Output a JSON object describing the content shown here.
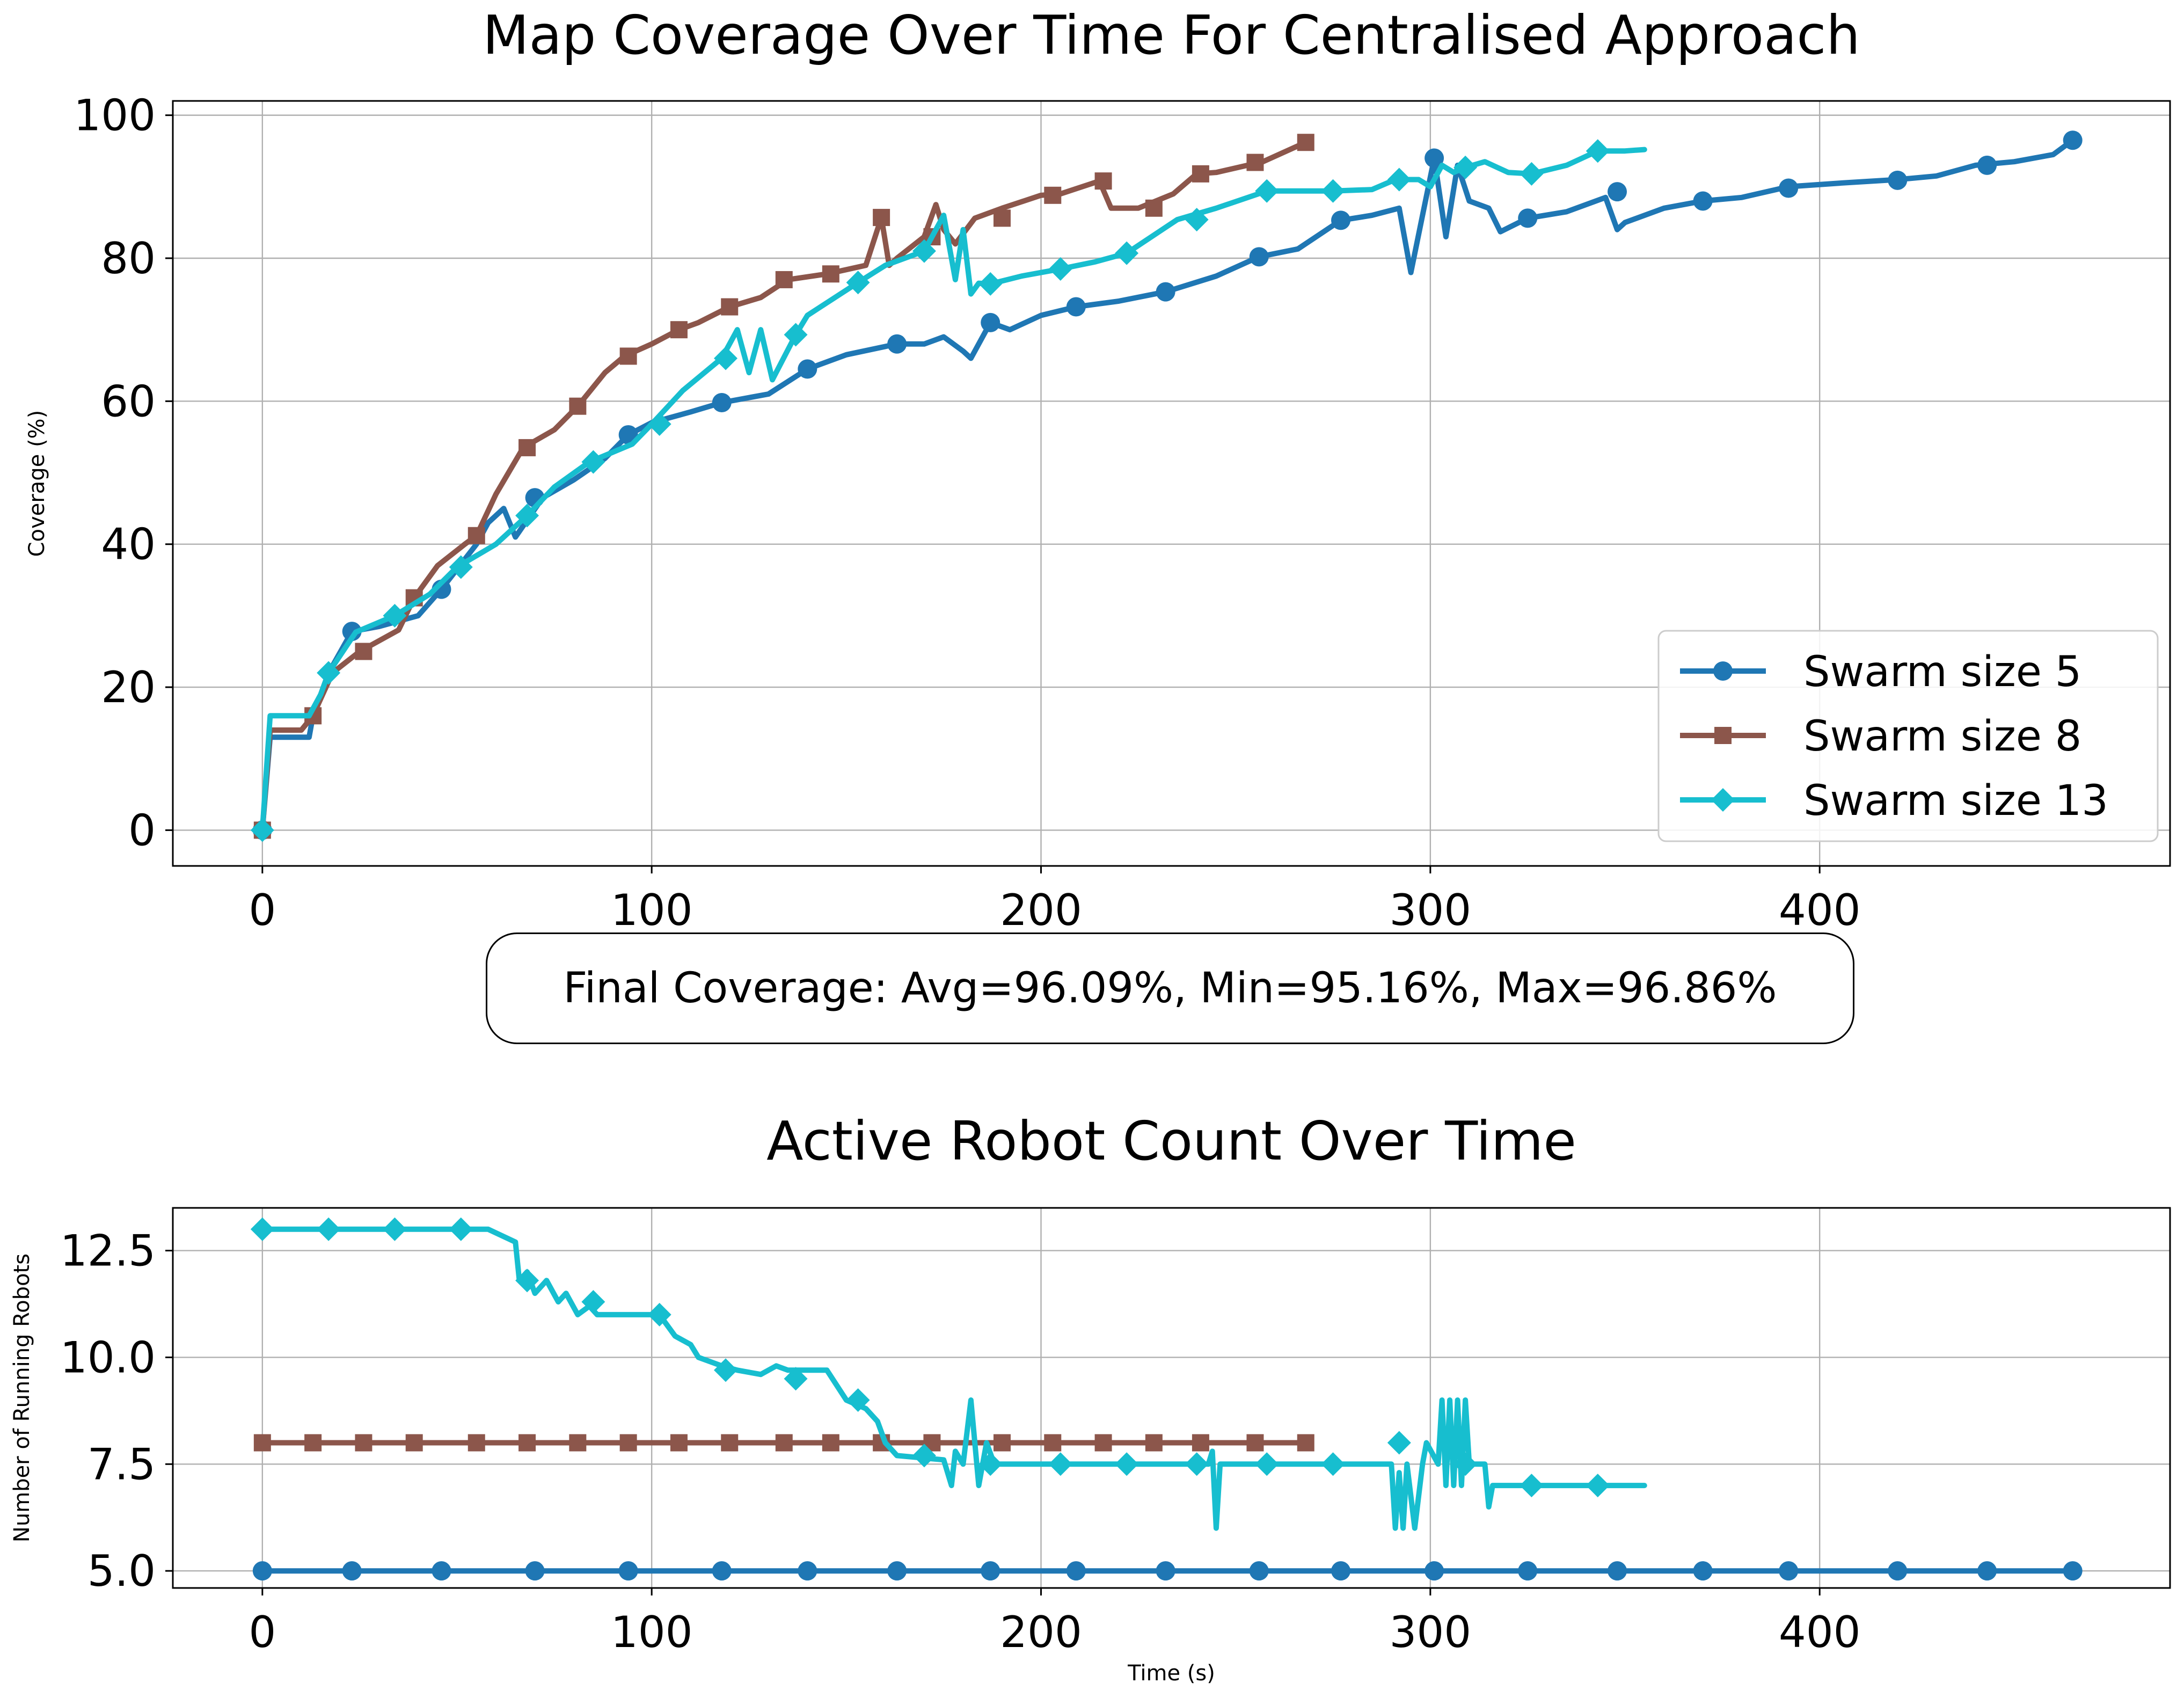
{
  "colors": {
    "s5": "#1f77b4",
    "s8": "#8c564b",
    "s13": "#17becf"
  },
  "legend_placement": "lower-right",
  "grid": true,
  "chart_data": [
    {
      "type": "line",
      "title": "Map Coverage Over Time For Centralised Approach",
      "xlabel": "Time (s)",
      "ylabel": "Coverage (%)",
      "xlim": [
        -23,
        490
      ],
      "ylim": [
        -5,
        102
      ],
      "xticks": [
        "0",
        "100",
        "200",
        "300",
        "400"
      ],
      "yticks": [
        "0",
        "20",
        "40",
        "60",
        "80",
        "100"
      ],
      "series": [
        {
          "name": "Swarm size 5",
          "marker": "circle",
          "color": "#1f77b4",
          "x": [
            0,
            2,
            3,
            12,
            13,
            17,
            23,
            30,
            40,
            46,
            55,
            58,
            62,
            65,
            72,
            80,
            88,
            94,
            100,
            110,
            118,
            130,
            140,
            150,
            163,
            170,
            175,
            180,
            182,
            187,
            192,
            200,
            209,
            220,
            232,
            245,
            256,
            266,
            277,
            285,
            292,
            295,
            298,
            301,
            304,
            307,
            310,
            315,
            318,
            325,
            335,
            345,
            348,
            350,
            360,
            370,
            380,
            392,
            405,
            420,
            430,
            440,
            450,
            460,
            465
          ],
          "y": [
            0,
            13,
            13,
            13,
            16,
            22,
            27.8,
            28.5,
            30,
            33.7,
            40,
            43,
            45,
            41,
            46.5,
            49,
            52,
            55.3,
            57,
            58.5,
            59.8,
            61,
            64.5,
            66.5,
            68,
            68,
            69,
            67,
            66,
            71,
            70,
            72,
            73.2,
            74,
            75.3,
            77.5,
            80.2,
            81.3,
            85.3,
            86,
            87,
            78,
            86,
            94,
            83,
            93,
            88,
            87,
            83.7,
            85.6,
            86.5,
            88.5,
            84,
            85,
            87,
            88,
            88.5,
            90,
            90.5,
            91,
            91.5,
            93,
            93.5,
            94.5,
            96.5
          ],
          "markers_x": [
            0,
            23,
            46,
            70,
            94,
            118,
            140,
            163,
            187,
            209,
            232,
            256,
            277,
            301,
            325,
            348,
            370,
            392,
            420,
            443,
            465
          ],
          "markers_y": [
            0,
            27.8,
            33.7,
            46.5,
            55.3,
            59.8,
            64.5,
            68,
            71,
            73.2,
            75.3,
            80.2,
            85.3,
            94,
            85.6,
            89.3,
            88,
            89.8,
            90.9,
            93,
            96.5
          ]
        },
        {
          "name": "Swarm size 8",
          "marker": "square",
          "color": "#8c564b",
          "x": [
            0,
            2,
            3,
            10,
            13,
            18,
            25,
            35,
            39,
            45,
            52,
            55,
            60,
            67,
            75,
            81,
            88,
            93,
            100,
            107,
            112,
            120,
            128,
            135,
            145,
            155,
            159,
            161,
            163,
            170,
            173,
            175,
            178,
            183,
            190,
            200,
            205,
            215,
            218,
            225,
            234,
            240,
            245,
            257,
            268
          ],
          "y": [
            0,
            14,
            14,
            14,
            16,
            22,
            25,
            28,
            32.5,
            37,
            40,
            41.2,
            47,
            53.5,
            56,
            59.3,
            64,
            66.3,
            68,
            70,
            71,
            73.2,
            74.5,
            77,
            77.8,
            79,
            85.7,
            79,
            80,
            83,
            87.5,
            84,
            82,
            85.6,
            87,
            88.8,
            89,
            90.8,
            87,
            87,
            89,
            91.8,
            92,
            93.5,
            96.2
          ],
          "markers_x": [
            0,
            13,
            26,
            39,
            55,
            68,
            81,
            94,
            107,
            120,
            134,
            146,
            159,
            172,
            190,
            203,
            216,
            229,
            241,
            255,
            268
          ],
          "markers_y": [
            0,
            16,
            25,
            32.5,
            41.2,
            53.5,
            59.3,
            66.3,
            70,
            73.2,
            77,
            77.8,
            85.7,
            83,
            85.6,
            88.8,
            90.8,
            87,
            91.8,
            93.4,
            96.2
          ]
        },
        {
          "name": "Swarm size 13",
          "marker": "diamond",
          "color": "#17becf",
          "x": [
            0,
            2,
            3,
            12,
            15,
            17,
            24,
            34,
            43,
            50,
            60,
            68,
            75,
            84,
            95,
            100,
            108,
            118,
            122,
            125,
            128,
            131,
            137,
            140,
            153,
            160,
            170,
            175,
            178,
            180,
            182,
            184,
            187,
            195,
            205,
            214,
            222,
            235,
            245,
            258,
            265,
            275,
            285,
            291,
            297,
            300,
            303,
            306,
            309,
            314,
            320,
            326,
            335,
            343,
            350,
            355
          ],
          "y": [
            0,
            16,
            16,
            16,
            19,
            22,
            27.7,
            30,
            33,
            36.8,
            40,
            44,
            48,
            51.5,
            54,
            56.8,
            61.5,
            66,
            70,
            64,
            70,
            63,
            69.3,
            72,
            76.6,
            79,
            81,
            86,
            77,
            84,
            75,
            76.5,
            76.4,
            77.5,
            78.5,
            79.5,
            80.7,
            85.4,
            87,
            89.4,
            89.4,
            89.4,
            89.6,
            91,
            91,
            90,
            93,
            92,
            92.7,
            93.5,
            92,
            91.8,
            93,
            95,
            95,
            95.2
          ],
          "markers_x": [
            0,
            17,
            34,
            51,
            68,
            85,
            102,
            119,
            137,
            153,
            170,
            187,
            205,
            222,
            240,
            258,
            275,
            292,
            309,
            326,
            343
          ],
          "markers_y": [
            0,
            22,
            30,
            36.8,
            44,
            51.5,
            56.8,
            66,
            69.3,
            76.6,
            81,
            76.4,
            78.5,
            80.7,
            85.4,
            89.4,
            89.4,
            91,
            92.7,
            91.8,
            95
          ]
        }
      ]
    },
    {
      "type": "line",
      "title": "Active Robot Count Over Time",
      "xlabel": "Time (s)",
      "ylabel": "Number of Running Robots",
      "xlim": [
        -23,
        490
      ],
      "ylim": [
        4.6,
        13.5
      ],
      "xticks": [
        "0",
        "100",
        "200",
        "300",
        "400"
      ],
      "yticks": [
        "5.0",
        "7.5",
        "10.0",
        "12.5"
      ],
      "series": [
        {
          "name": "Swarm size 5",
          "marker": "circle",
          "color": "#1f77b4",
          "x": [
            0,
            465
          ],
          "y": [
            5,
            5
          ],
          "markers_x": [
            0,
            23,
            46,
            70,
            94,
            118,
            140,
            163,
            187,
            209,
            232,
            256,
            277,
            301,
            325,
            348,
            370,
            392,
            420,
            443,
            465
          ],
          "markers_y": [
            5,
            5,
            5,
            5,
            5,
            5,
            5,
            5,
            5,
            5,
            5,
            5,
            5,
            5,
            5,
            5,
            5,
            5,
            5,
            5,
            5
          ]
        },
        {
          "name": "Swarm size 8",
          "marker": "square",
          "color": "#8c564b",
          "x": [
            0,
            268
          ],
          "y": [
            8,
            8
          ],
          "markers_x": [
            0,
            13,
            26,
            39,
            55,
            68,
            81,
            94,
            107,
            120,
            134,
            146,
            159,
            172,
            190,
            203,
            216,
            229,
            241,
            255,
            268
          ],
          "markers_y": [
            8,
            8,
            8,
            8,
            8,
            8,
            8,
            8,
            8,
            8,
            8,
            8,
            8,
            8,
            8,
            8,
            8,
            8,
            8,
            8,
            8
          ]
        },
        {
          "name": "Swarm size 13",
          "marker": "diamond",
          "color": "#17becf",
          "x": [
            0,
            58,
            65,
            66,
            68,
            70,
            73,
            76,
            78,
            81,
            84,
            86,
            88,
            95,
            102,
            106,
            110,
            112,
            118,
            122,
            128,
            132,
            135,
            138,
            140,
            145,
            150,
            155,
            158,
            160,
            162,
            163,
            175,
            177,
            178,
            180,
            182,
            184,
            186,
            188,
            190,
            243,
            244,
            245,
            246,
            248,
            290,
            291,
            292,
            293,
            294,
            296,
            298,
            299,
            302,
            303,
            304,
            305,
            306,
            307,
            308,
            309,
            310,
            312,
            314,
            315,
            316,
            318,
            320,
            325,
            355
          ],
          "y": [
            13,
            13,
            12.7,
            11.8,
            12,
            11.5,
            11.8,
            11.3,
            11.5,
            11,
            11.2,
            11,
            11,
            11,
            11,
            10.5,
            10.3,
            10,
            9.8,
            9.7,
            9.6,
            9.8,
            9.7,
            9.7,
            9.7,
            9.7,
            9,
            8.8,
            8.5,
            8,
            7.8,
            7.7,
            7.6,
            7,
            7.8,
            7.5,
            9,
            7,
            8,
            7.5,
            7.5,
            7.5,
            7.8,
            6,
            7.5,
            7.5,
            7.5,
            6,
            7.3,
            6,
            7.5,
            6,
            7.5,
            8,
            7.5,
            9,
            7,
            9,
            7,
            9,
            7,
            9,
            7.5,
            7.5,
            7.5,
            6.5,
            7,
            7,
            7,
            7,
            7
          ],
          "markers_x": [
            0,
            17,
            34,
            51,
            68,
            85,
            102,
            119,
            137,
            153,
            170,
            187,
            205,
            222,
            240,
            258,
            275,
            292,
            309,
            326,
            343
          ],
          "markers_y": [
            13,
            13,
            13,
            13,
            11.8,
            11.3,
            11,
            9.7,
            9.5,
            9,
            7.7,
            7.5,
            7.5,
            7.5,
            7.5,
            7.5,
            7.5,
            8,
            7.5,
            7,
            7
          ]
        }
      ]
    }
  ],
  "summary_box": "Final Coverage: Avg=96.09%, Min=95.16%, Max=96.86%"
}
